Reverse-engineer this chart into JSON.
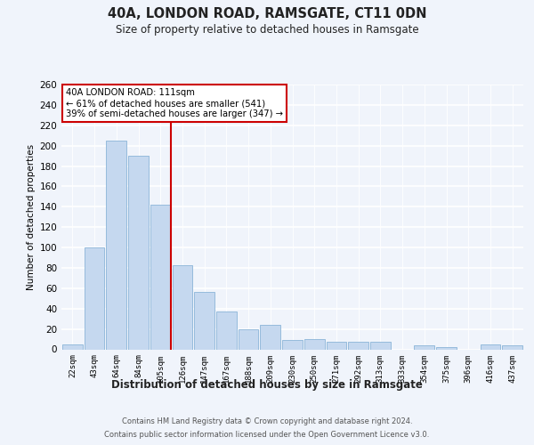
{
  "title": "40A, LONDON ROAD, RAMSGATE, CT11 0DN",
  "subtitle": "Size of property relative to detached houses in Ramsgate",
  "xlabel": "Distribution of detached houses by size in Ramsgate",
  "ylabel": "Number of detached properties",
  "bar_color": "#c5d8ef",
  "bar_edge_color": "#8ab4d8",
  "background_color": "#f0f4fb",
  "plot_bg_color": "#f0f4fb",
  "grid_color": "#ffffff",
  "categories": [
    "22sqm",
    "43sqm",
    "64sqm",
    "84sqm",
    "105sqm",
    "126sqm",
    "147sqm",
    "167sqm",
    "188sqm",
    "209sqm",
    "230sqm",
    "250sqm",
    "271sqm",
    "292sqm",
    "313sqm",
    "333sqm",
    "354sqm",
    "375sqm",
    "396sqm",
    "416sqm",
    "437sqm"
  ],
  "values": [
    5,
    100,
    205,
    190,
    142,
    83,
    56,
    37,
    20,
    24,
    9,
    10,
    7,
    7,
    7,
    0,
    4,
    2,
    0,
    5,
    4
  ],
  "ylim": [
    0,
    260
  ],
  "yticks": [
    0,
    20,
    40,
    60,
    80,
    100,
    120,
    140,
    160,
    180,
    200,
    220,
    240,
    260
  ],
  "vline_x_idx": 4,
  "vline_color": "#cc0000",
  "annotation_title": "40A LONDON ROAD: 111sqm",
  "annotation_line1": "← 61% of detached houses are smaller (541)",
  "annotation_line2": "39% of semi-detached houses are larger (347) →",
  "annotation_box_color": "#ffffff",
  "annotation_box_edge": "#cc0000",
  "footer_line1": "Contains HM Land Registry data © Crown copyright and database right 2024.",
  "footer_line2": "Contains public sector information licensed under the Open Government Licence v3.0."
}
